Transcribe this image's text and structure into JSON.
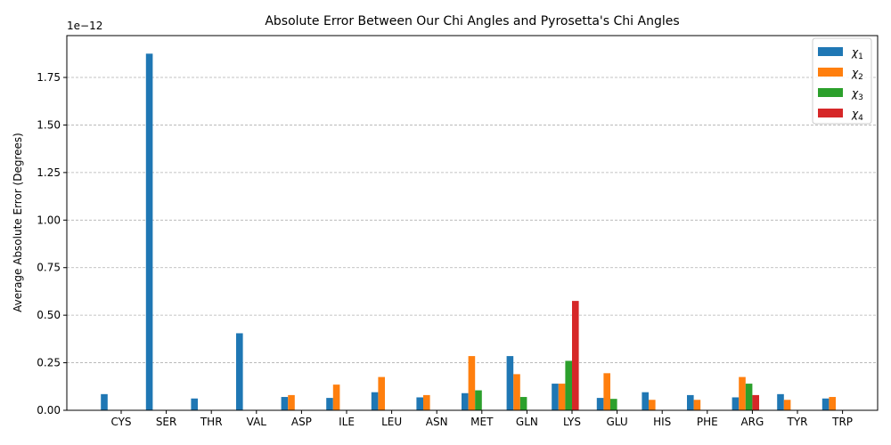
{
  "chart_data": {
    "type": "bar",
    "title": "Absolute Error Between Our Chi Angles and Pyrosetta's Chi Angles",
    "xlabel": "",
    "ylabel": "Average Absolute Error (Degrees)",
    "y_offset_label": "1e−12",
    "ylim": [
      0,
      1.97
    ],
    "yticks": [
      "0.00",
      "0.25",
      "0.50",
      "0.75",
      "1.00",
      "1.25",
      "1.50",
      "1.75"
    ],
    "grid": "y-dashed",
    "legend_position": "top-right",
    "categories": [
      "CYS",
      "SER",
      "THR",
      "VAL",
      "ASP",
      "ILE",
      "LEU",
      "ASN",
      "MET",
      "GLN",
      "LYS",
      "GLU",
      "HIS",
      "PHE",
      "ARG",
      "TYR",
      "TRP"
    ],
    "series": [
      {
        "name": "χ",
        "sub": "1",
        "color": "#1f77b4",
        "values": [
          0.085,
          1.875,
          0.062,
          0.405,
          0.07,
          0.065,
          0.095,
          0.068,
          0.09,
          0.285,
          0.14,
          0.065,
          0.095,
          0.08,
          0.068,
          0.085,
          0.062
        ]
      },
      {
        "name": "χ",
        "sub": "2",
        "color": "#ff7f0e",
        "values": [
          0,
          0,
          0,
          0,
          0.08,
          0.135,
          0.175,
          0.08,
          0.285,
          0.19,
          0.14,
          0.195,
          0.055,
          0.055,
          0.175,
          0.055,
          0.07
        ]
      },
      {
        "name": "χ",
        "sub": "3",
        "color": "#2ca02c",
        "values": [
          0,
          0,
          0,
          0,
          0,
          0,
          0,
          0,
          0.105,
          0.07,
          0.26,
          0.06,
          0,
          0,
          0.14,
          0,
          0
        ]
      },
      {
        "name": "χ",
        "sub": "4",
        "color": "#d62728",
        "values": [
          0,
          0,
          0,
          0,
          0,
          0,
          0,
          0,
          0,
          0,
          0.575,
          0,
          0,
          0,
          0.08,
          0,
          0
        ]
      }
    ]
  }
}
